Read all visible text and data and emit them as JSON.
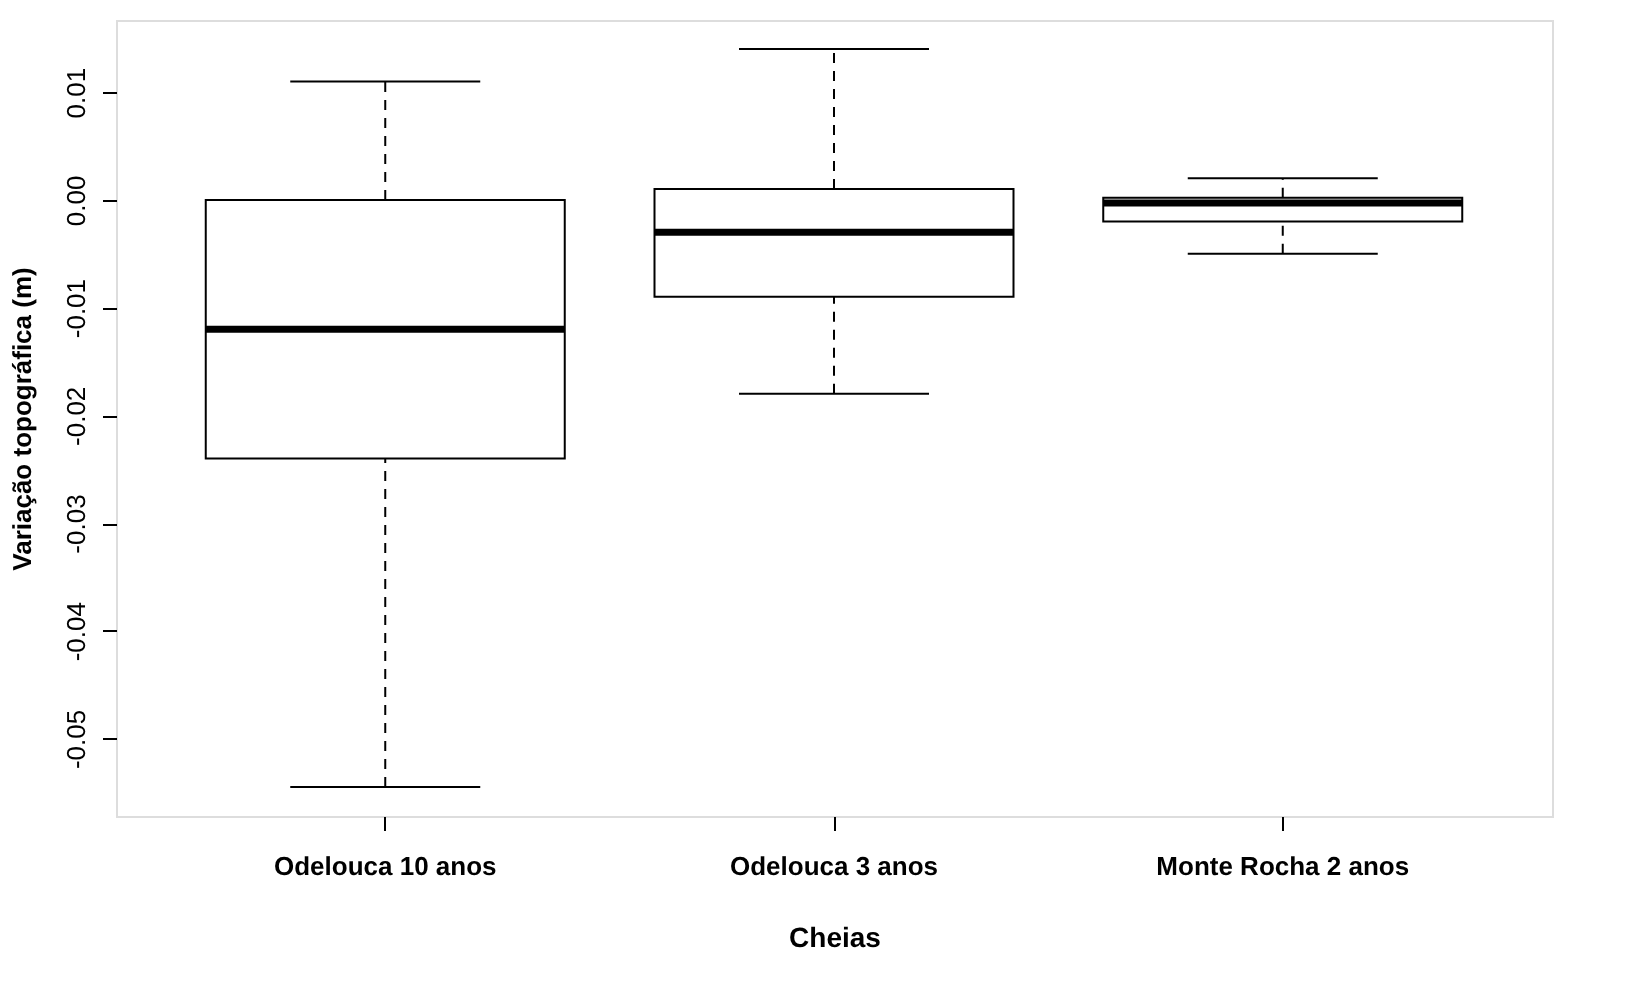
{
  "chart_data": {
    "type": "box",
    "xlabel": "Cheias",
    "ylabel": "Variação topográfica (m)",
    "categories": [
      "Odelouca 10 anos",
      "Odelouca 3 anos",
      "Monte Rocha 2 anos"
    ],
    "boxes": [
      {
        "low": -0.0545,
        "q1": -0.024,
        "median": -0.012,
        "q3": 0.0,
        "high": 0.011
      },
      {
        "low": -0.018,
        "q1": -0.009,
        "median": -0.003,
        "q3": 0.001,
        "high": 0.014
      },
      {
        "low": -0.005,
        "q1": -0.002,
        "median": -0.0003,
        "q3": 0.0002,
        "high": 0.002
      }
    ],
    "ylim": [
      -0.0572,
      0.0167
    ],
    "yticks": [
      {
        "value": -0.05,
        "label": "-0.05"
      },
      {
        "value": -0.04,
        "label": "-0.04"
      },
      {
        "value": -0.03,
        "label": "-0.03"
      },
      {
        "value": -0.02,
        "label": "-0.02"
      },
      {
        "value": -0.01,
        "label": "-0.01"
      },
      {
        "value": 0,
        "label": "0.00"
      },
      {
        "value": 0.01,
        "label": "0.01"
      }
    ]
  }
}
